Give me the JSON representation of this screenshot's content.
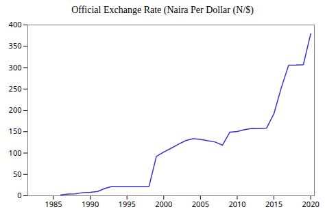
{
  "chart_data": {
    "type": "line",
    "title": "Official Exchange Rate (Naira Per Dollar (N/$)",
    "x": [
      1986,
      1987,
      1988,
      1989,
      1990,
      1991,
      1992,
      1993,
      1994,
      1995,
      1996,
      1997,
      1998,
      1999,
      2000,
      2001,
      2002,
      2003,
      2004,
      2005,
      2006,
      2007,
      2008,
      2009,
      2010,
      2011,
      2012,
      2013,
      2014,
      2015,
      2016,
      2017,
      2018,
      2019,
      2020
    ],
    "values": [
      2.0,
      4.0,
      4.5,
      7.4,
      8.0,
      9.9,
      17.3,
      22.0,
      22.0,
      22.0,
      21.9,
      21.9,
      21.9,
      92.3,
      102.1,
      111.2,
      120.6,
      129.2,
      133.5,
      132.1,
      128.7,
      125.8,
      118.5,
      148.9,
      150.3,
      154.7,
      157.5,
      157.3,
      158.5,
      192.4,
      253.0,
      305.8,
      306.1,
      306.9,
      379.5
    ],
    "color": "#3333cc",
    "xlim": [
      1981.5,
      2020.5
    ],
    "xticks": [
      1985,
      1990,
      1995,
      2000,
      2005,
      2010,
      2015,
      2020
    ],
    "ylim": [
      0,
      400
    ],
    "yticks": [
      0,
      50,
      100,
      150,
      200,
      250,
      300,
      350,
      400
    ],
    "grid": false
  }
}
